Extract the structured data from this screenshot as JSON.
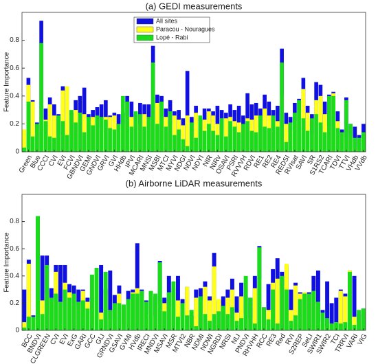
{
  "chart_data": [
    {
      "type": "bar",
      "title": "(a) GEDI measurements",
      "ylabel": "Feature Importance",
      "legend": "upper center",
      "categories": [
        null,
        "Green",
        null,
        "Blue",
        null,
        "CCCI",
        null,
        "CVI",
        null,
        "EVI",
        null,
        "FCVI",
        null,
        "GBNDVI",
        null,
        "GEMI",
        null,
        "GNDVI",
        null,
        "GRVI",
        null,
        "GVI",
        null,
        "HHdb",
        null,
        "IPVI",
        null,
        "MCARI",
        null,
        "MNSI",
        null,
        "MSBI",
        null,
        "MTCI",
        null,
        "MYVI",
        null,
        "NDGI",
        null,
        "NDVI",
        null,
        "NDYI",
        null,
        "NIR",
        null,
        "NIRv",
        null,
        "OSAVI",
        null,
        "PSRI",
        null,
        "RVVVH",
        null,
        "RDVI",
        null,
        "RE1",
        null,
        "RE2",
        null,
        "RE4",
        null,
        "REDSI",
        null,
        "RVIsat",
        null,
        "SAVI",
        null,
        "SR",
        null,
        "S1RS2",
        null,
        "TCARI",
        null,
        "TDVI",
        null,
        "TTVI",
        null,
        "VHdb",
        null,
        "VVdb"
      ],
      "series": [
        {
          "name": "All sites",
          "color": "#1010e0",
          "values": [
            0.04,
            0.53,
            0.37,
            0.21,
            0.94,
            0.31,
            0.39,
            0.34,
            0.27,
            0.47,
            0.46,
            0.28,
            0.37,
            0.4,
            0.46,
            0.27,
            0.3,
            0.32,
            0.34,
            0.37,
            0.26,
            0.28,
            0.27,
            0.28,
            0.4,
            0.36,
            0.27,
            0.35,
            0.34,
            0.34,
            0.76,
            0.41,
            0.4,
            0.31,
            0.37,
            0.29,
            0.3,
            0.24,
            0.58,
            0.25,
            0.33,
            0.24,
            0.31,
            0.31,
            0.29,
            0.33,
            0.3,
            0.28,
            0.34,
            0.3,
            0.33,
            0.26,
            0.42,
            0.34,
            0.35,
            0.31,
            0.41,
            0.36,
            0.3,
            0.33,
            0.74,
            0.28,
            0.25,
            0.35,
            0.38,
            0.53,
            0.33,
            0.27,
            0.5,
            0.48,
            0.36,
            0.41,
            0.43,
            0.29,
            0.16,
            0.39,
            0.2,
            0.18,
            0.12,
            0.2
          ]
        },
        {
          "name": "Paracou - Nouragues",
          "color": "#ffff1a",
          "values": [
            0.16,
            0.48,
            0.36,
            0.16,
            0.31,
            0.23,
            0.34,
            0.26,
            0.12,
            0.44,
            0.47,
            0.26,
            0.3,
            0.28,
            0.27,
            0.22,
            0.25,
            0.24,
            0.17,
            0.25,
            0.25,
            0.26,
            0.19,
            0.2,
            0.26,
            0.25,
            0.24,
            0.2,
            0.27,
            0.18,
            0.41,
            0.35,
            0.32,
            0.25,
            0.2,
            0.26,
            0.23,
            0.19,
            0.26,
            0.15,
            0.28,
            0.22,
            0.23,
            0.29,
            0.26,
            0.2,
            0.15,
            0.24,
            0.25,
            0.22,
            0.21,
            0.19,
            0.24,
            0.23,
            0.26,
            0.23,
            0.31,
            0.26,
            0.24,
            0.22,
            0.4,
            0.2,
            0.15,
            0.22,
            0.3,
            0.45,
            0.28,
            0.13,
            0.37,
            0.4,
            0.27,
            0.18,
            0.42,
            0.22,
            0.12,
            0.1,
            0.12,
            0.03,
            0.04,
            0.11
          ]
        },
        {
          "name": "Lopé - Rabi",
          "color": "#1adc1a",
          "values": [
            0.03,
            0.36,
            0.11,
            0.2,
            0.78,
            0.22,
            0.11,
            0.1,
            0.26,
            0.22,
            0.12,
            0.3,
            0.21,
            0.28,
            0.14,
            0.25,
            0.19,
            0.26,
            0.25,
            0.23,
            0.17,
            0.16,
            0.2,
            0.4,
            0.36,
            0.18,
            0.29,
            0.27,
            0.18,
            0.25,
            0.64,
            0.2,
            0.36,
            0.18,
            0.29,
            0.12,
            0.16,
            0.09,
            0.04,
            0.21,
            0.1,
            0.26,
            0.15,
            0.2,
            0.15,
            0.12,
            0.24,
            0.11,
            0.22,
            0.18,
            0.14,
            0.2,
            0.22,
            0.15,
            0.14,
            0.26,
            0.18,
            0.17,
            0.26,
            0.18,
            0.64,
            0.07,
            0.21,
            0.28,
            0.37,
            0.24,
            0.15,
            0.24,
            0.27,
            0.21,
            0.14,
            0.4,
            0.4,
            0.17,
            0.14,
            0.37,
            0.2,
            0.1,
            0.1,
            0.14
          ]
        }
      ],
      "ylim": [
        0,
        1
      ],
      "yticks": [
        0,
        {
          "value": 0.2,
          "label": "0.2"
        },
        {
          "value": 0.4,
          "label": "0.4"
        },
        {
          "value": 0.6,
          "label": "0.6"
        },
        {
          "value": 0.8,
          "label": "0.8"
        }
      ]
    },
    {
      "type": "bar",
      "title": "(b) Airborne LiDAR measurements",
      "ylabel": "Feature Importance",
      "categories": [
        null,
        "BCC",
        null,
        "BNDVI",
        null,
        "CLGREEN",
        null,
        "CVI",
        null,
        "EVI",
        null,
        "ExG",
        null,
        "GARI",
        null,
        "GCC",
        null,
        "GLI",
        null,
        "GRNDVI",
        null,
        "GSAVI",
        null,
        "GVMI",
        null,
        "HVdb",
        null,
        "IRECI",
        null,
        "MNDVI",
        null,
        "MSAVI",
        null,
        "MSR",
        null,
        "MTVI2",
        null,
        "NBR",
        null,
        "NDMI",
        null,
        "NDWI",
        null,
        "NGRDI",
        null,
        "NRSI",
        null,
        "NLI",
        null,
        "PNDVI",
        null,
        "RHVHH",
        null,
        "RCC",
        null,
        "RE3",
        null,
        "Red",
        null,
        "RVI",
        null,
        "S2REP",
        null,
        "SeLI",
        null,
        "SWIR1",
        null,
        "SWIR2",
        null,
        "TCI",
        null,
        "TRRVI",
        null,
        "VARI",
        null,
        "VIG"
      ],
      "series": [
        {
          "color": "#1010e0",
          "values": [
            0.3,
            0.52,
            0.11,
            0.83,
            0.55,
            0.55,
            0.31,
            0.48,
            0.48,
            0.48,
            0.34,
            0.33,
            0.3,
            0.3,
            0.24,
            0.23,
            0.37,
            0.48,
            0.3,
            0.44,
            0.26,
            0.33,
            0.18,
            0.29,
            0.3,
            0.64,
            0.3,
            0.22,
            0.28,
            0.25,
            0.51,
            0.24,
            0.4,
            0.3,
            0.4,
            0.23,
            0.32,
            0.11,
            0.3,
            0.31,
            0.36,
            0.25,
            0.57,
            0.22,
            0.25,
            0.3,
            0.38,
            0.25,
            0.35,
            0.25,
            0.24,
            0.4,
            0.62,
            0.17,
            0.34,
            0.45,
            0.53,
            0.43,
            0.48,
            0.3,
            0.35,
            0.28,
            0.28,
            0.28,
            0.4,
            0.44,
            0.15,
            0.36,
            0.2,
            0.24,
            0.3,
            0.27,
            0.44,
            0.4,
            0.12,
            0.16
          ]
        },
        {
          "color": "#ffff1a",
          "values": [
            0.06,
            0.49,
            0.08,
            0.24,
            0.22,
            0.27,
            0.22,
            0.43,
            0.17,
            0.35,
            0.28,
            0.25,
            0.18,
            0.29,
            0.21,
            0.28,
            0.37,
            0.13,
            0.27,
            0.08,
            0.19,
            0.27,
            0.04,
            0.18,
            0.28,
            0.31,
            0.25,
            0.12,
            0.26,
            0.11,
            0.19,
            0.2,
            0.18,
            0.3,
            0.22,
            0.08,
            0.32,
            0.09,
            0.24,
            0.22,
            0.32,
            0.22,
            0.47,
            0.23,
            0.12,
            0.24,
            0.3,
            0.13,
            0.25,
            0.13,
            0.09,
            0.31,
            0.38,
            0.04,
            0.15,
            0.35,
            0.38,
            0.33,
            0.49,
            0.15,
            0.33,
            0.27,
            0.28,
            0.26,
            0.2,
            0.06,
            0.06,
            0.03,
            0.05,
            0.06,
            0.29,
            0.25,
            0.44,
            0.1,
            0.06,
            0.1
          ]
        },
        {
          "color": "#1adc1a",
          "values": [
            0.02,
            0.1,
            0.1,
            0.84,
            0.12,
            0.48,
            0.24,
            0.27,
            0.21,
            0.3,
            0.24,
            0.27,
            0.21,
            0.22,
            0.16,
            0.41,
            0.46,
            0.08,
            0.43,
            0.15,
            0.2,
            0.2,
            0.19,
            0.23,
            0.27,
            0.27,
            0.29,
            0.21,
            0.29,
            0.27,
            0.5,
            0.14,
            0.28,
            0.36,
            0.1,
            0.2,
            0.11,
            0.15,
            0.03,
            0.25,
            0.12,
            0.07,
            0.12,
            0.14,
            0.18,
            0.12,
            0.17,
            0.07,
            0.09,
            0.4,
            0.24,
            0.05,
            0.61,
            0.17,
            0.08,
            0.3,
            0.05,
            0.4,
            0.3,
            0.07,
            0.11,
            0.23,
            0.27,
            0.27,
            0.29,
            0.21,
            0.13,
            0.09,
            0.05,
            0.06,
            0.05,
            0.06,
            0.43,
            0.04,
            0.15,
            0.16
          ]
        }
      ],
      "ylim": [
        0,
        1
      ],
      "yticks": [
        0,
        {
          "value": 0.2,
          "label": "0.2"
        },
        {
          "value": 0.4,
          "label": "0.4"
        },
        {
          "value": 0.6,
          "label": "0.6"
        },
        {
          "value": 0.8,
          "label": "0.8"
        }
      ]
    }
  ]
}
